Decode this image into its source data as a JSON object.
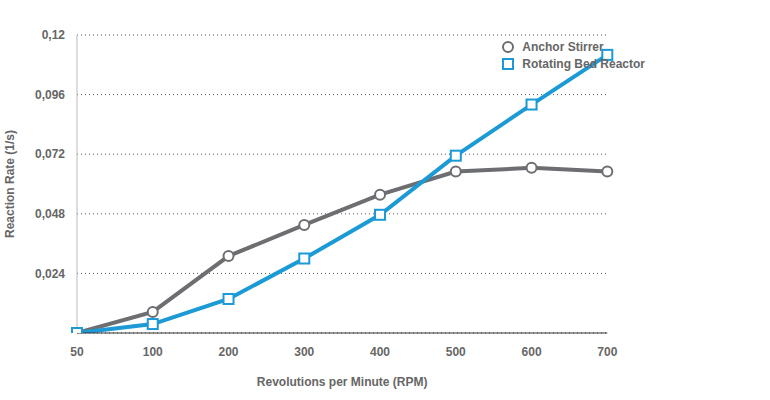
{
  "chart_data": {
    "type": "line",
    "x_label": "Revolutions per Minute (RPM)",
    "y_label": "Reaction Rate (1/s)",
    "categories": [
      "50",
      "100",
      "200",
      "300",
      "400",
      "500",
      "600",
      "700"
    ],
    "series": [
      {
        "name": "Anchor Stirrer",
        "color": "#6d6e71",
        "marker": "circle",
        "values": [
          0.0,
          0.0085,
          0.031,
          0.0435,
          0.0557,
          0.065,
          0.0665,
          0.065
        ]
      },
      {
        "name": "Rotating Bed Reactor",
        "color": "#1b9ad6",
        "marker": "square",
        "values": [
          0.0,
          0.0036,
          0.0137,
          0.03,
          0.0476,
          0.0714,
          0.092,
          0.112
        ]
      }
    ],
    "ylim": [
      0,
      0.12
    ],
    "yticks": [
      {
        "value": 0.024,
        "label": "0,024"
      },
      {
        "value": 0.048,
        "label": "0,048"
      },
      {
        "value": 0.072,
        "label": "0,072"
      },
      {
        "value": 0.096,
        "label": "0,096"
      },
      {
        "value": 0.12,
        "label": "0,12"
      }
    ],
    "grid": true,
    "legend": "upper right"
  }
}
